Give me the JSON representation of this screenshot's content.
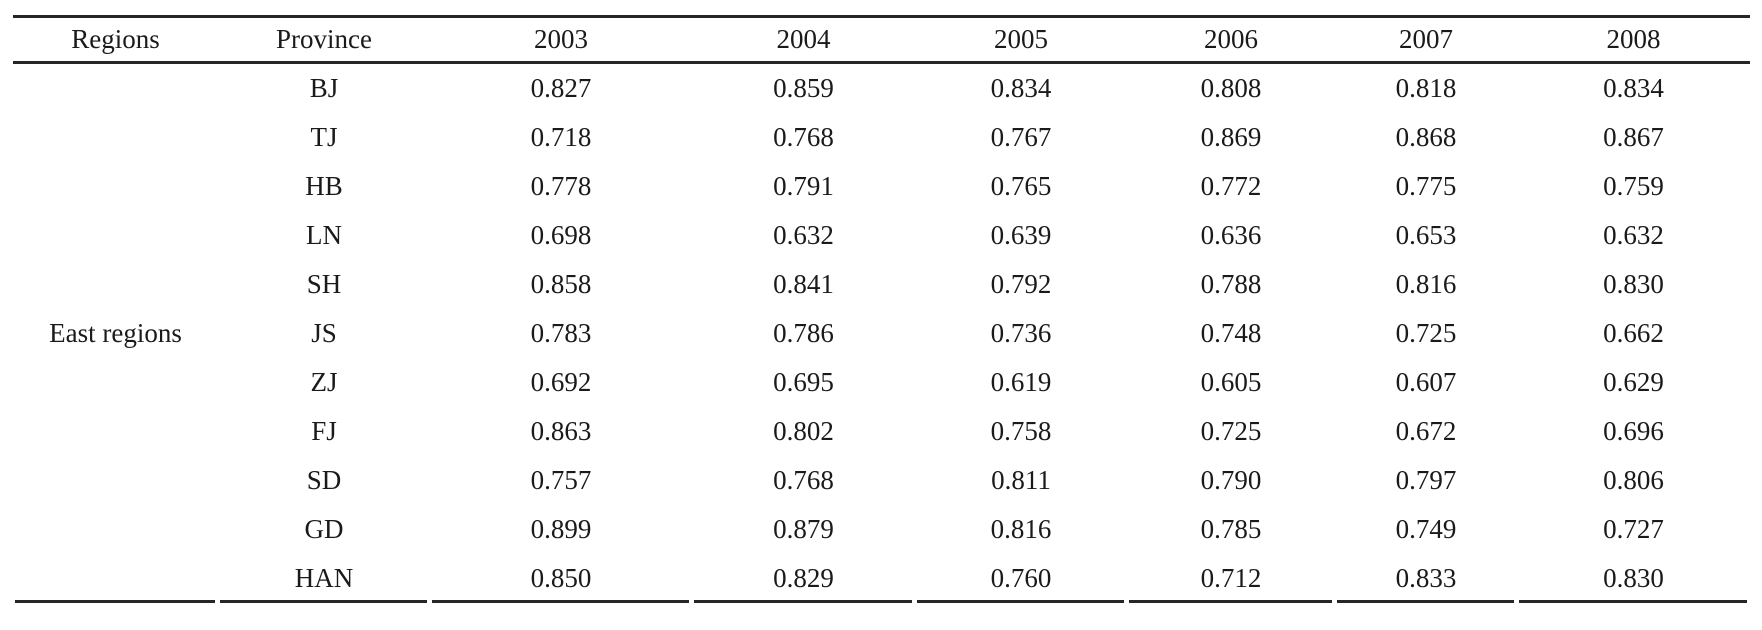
{
  "page": {
    "background_color": "#ffffff",
    "text_color": "#1a1a1a",
    "rule_color": "#262626"
  },
  "table": {
    "columns": [
      "Regions",
      "Province",
      "2003",
      "2004",
      "2005",
      "2006",
      "2007",
      "2008"
    ],
    "region_label": "East regions",
    "rows": [
      {
        "province": "BJ",
        "values": [
          "0.827",
          "0.859",
          "0.834",
          "0.808",
          "0.818",
          "0.834"
        ]
      },
      {
        "province": "TJ",
        "values": [
          "0.718",
          "0.768",
          "0.767",
          "0.869",
          "0.868",
          "0.867"
        ]
      },
      {
        "province": "HB",
        "values": [
          "0.778",
          "0.791",
          "0.765",
          "0.772",
          "0.775",
          "0.759"
        ]
      },
      {
        "province": "LN",
        "values": [
          "0.698",
          "0.632",
          "0.639",
          "0.636",
          "0.653",
          "0.632"
        ]
      },
      {
        "province": "SH",
        "values": [
          "0.858",
          "0.841",
          "0.792",
          "0.788",
          "0.816",
          "0.830"
        ]
      },
      {
        "province": "JS",
        "values": [
          "0.783",
          "0.786",
          "0.736",
          "0.748",
          "0.725",
          "0.662"
        ]
      },
      {
        "province": "ZJ",
        "values": [
          "0.692",
          "0.695",
          "0.619",
          "0.605",
          "0.607",
          "0.629"
        ]
      },
      {
        "province": "FJ",
        "values": [
          "0.863",
          "0.802",
          "0.758",
          "0.725",
          "0.672",
          "0.696"
        ]
      },
      {
        "province": "SD",
        "values": [
          "0.757",
          "0.768",
          "0.811",
          "0.790",
          "0.797",
          "0.806"
        ]
      },
      {
        "province": "GD",
        "values": [
          "0.899",
          "0.879",
          "0.816",
          "0.785",
          "0.749",
          "0.727"
        ]
      },
      {
        "province": "HAN",
        "values": [
          "0.850",
          "0.829",
          "0.760",
          "0.712",
          "0.833",
          "0.830"
        ]
      }
    ]
  }
}
